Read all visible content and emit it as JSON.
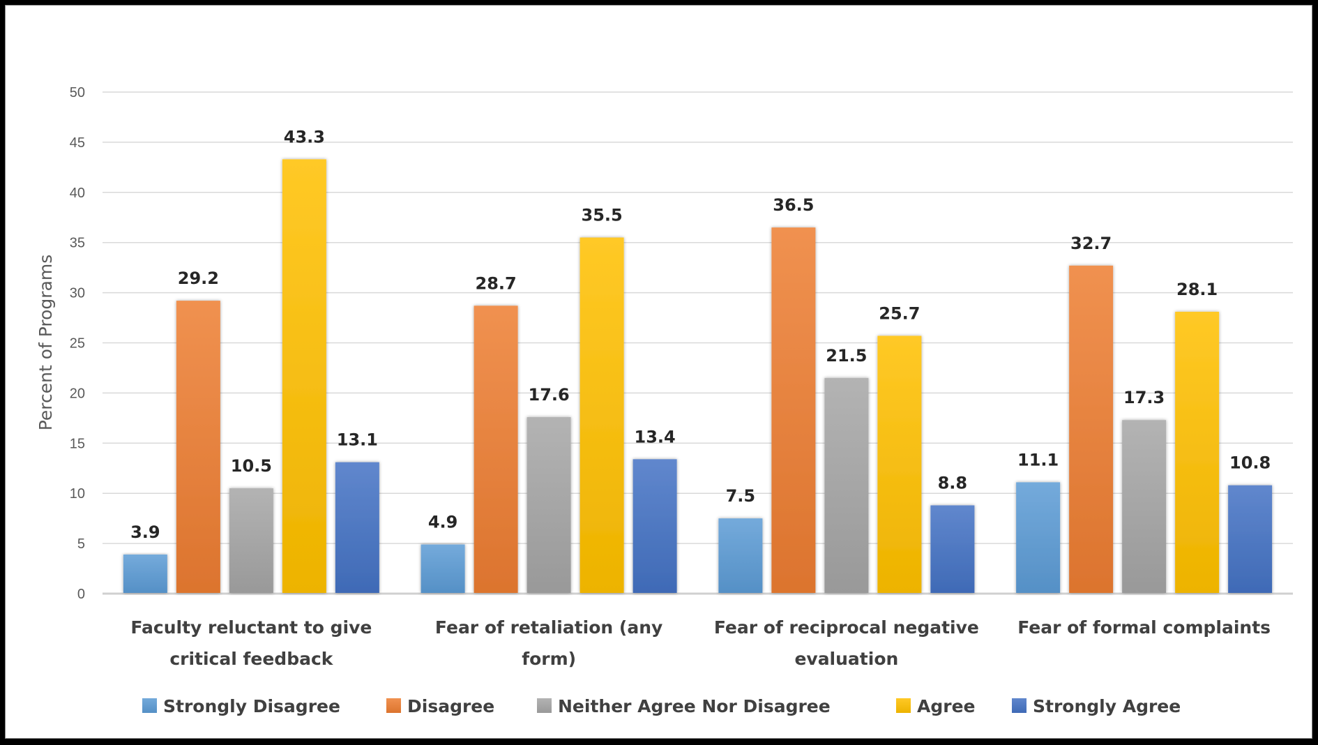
{
  "chart_data": {
    "type": "bar",
    "title": "",
    "xlabel": "",
    "ylabel": "Percent of Programs",
    "ylim": [
      0,
      50
    ],
    "yticks": [
      0,
      5,
      10,
      15,
      20,
      25,
      30,
      35,
      40,
      45,
      50
    ],
    "grid": true,
    "legend_position": "bottom",
    "categories": [
      [
        "Faculty reluctant to give",
        "critical feedback"
      ],
      [
        "Fear of retaliation (any",
        "form)"
      ],
      [
        "Fear of reciprocal negative",
        "evaluation"
      ],
      [
        "Fear of formal complaints"
      ]
    ],
    "series": [
      {
        "name": "Strongly Disagree",
        "color": "#5B9BD5",
        "values": [
          3.9,
          4.9,
          7.5,
          11.1
        ]
      },
      {
        "name": "Disagree",
        "color": "#ED7D31",
        "values": [
          29.2,
          28.7,
          36.5,
          32.7
        ]
      },
      {
        "name": "Neither Agree Nor Disagree",
        "color": "#A5A5A5",
        "values": [
          10.5,
          17.6,
          21.5,
          17.3
        ]
      },
      {
        "name": "Agree",
        "color": "#FFC000",
        "values": [
          43.3,
          35.5,
          25.7,
          28.1
        ]
      },
      {
        "name": "Strongly Agree",
        "color": "#4472C4",
        "values": [
          13.1,
          13.4,
          8.8,
          10.8
        ]
      }
    ]
  }
}
